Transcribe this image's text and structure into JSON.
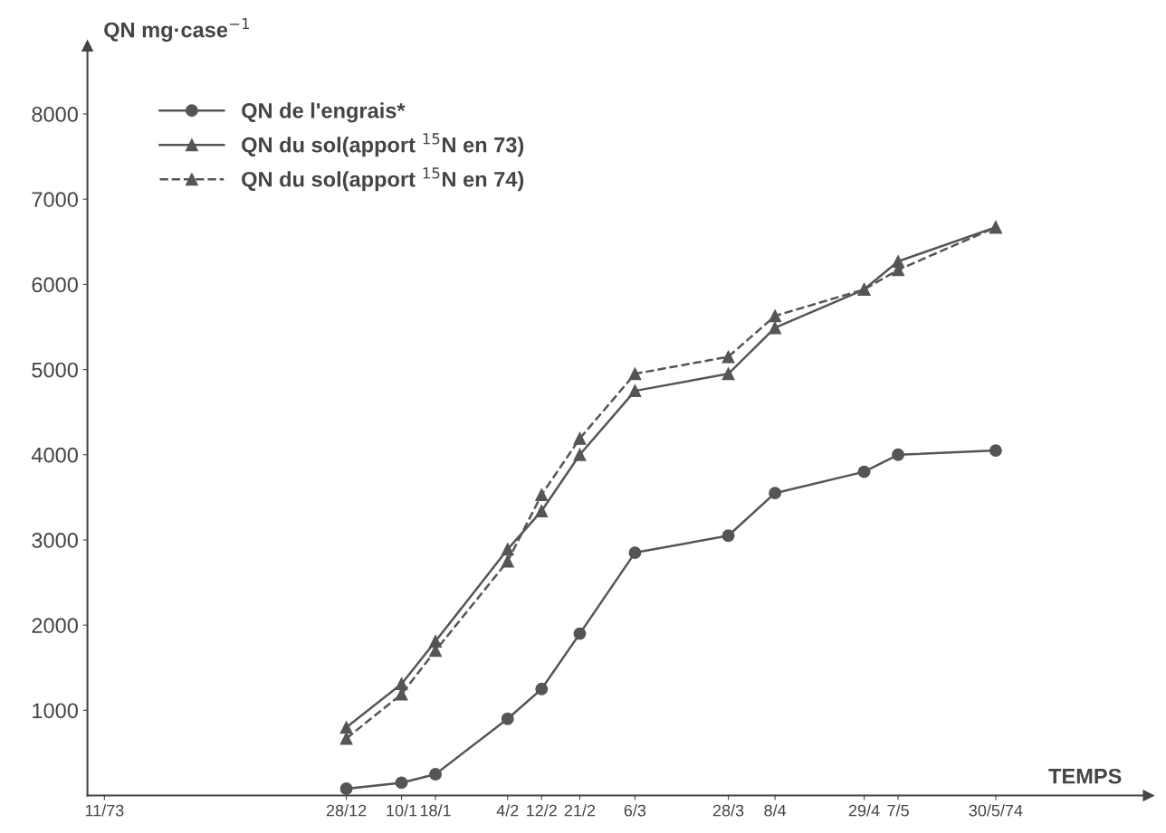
{
  "chart_data": {
    "type": "line",
    "ylabel": "QN mg·case$^{−1}$",
    "xlabel": "TEMPS",
    "x": [
      "1973-12-28",
      "1974-01-10",
      "1974-01-18",
      "1974-02-04",
      "1974-02-12",
      "1974-02-21",
      "1974-03-06",
      "1974-03-28",
      "1974-04-08",
      "1974-04-29",
      "1974-05-07",
      "1974-05-30"
    ],
    "series": [
      {
        "name": "QN de l'engrais*",
        "color": "#555555",
        "marker": "circle",
        "line_style": "solid",
        "values": [
          80,
          150,
          250,
          900,
          1250,
          1900,
          2850,
          3050,
          3550,
          3800,
          4000,
          4050
        ]
      },
      {
        "name": "QN du sol(apport $^{15}$N en 73)",
        "color": "#555555",
        "marker": "triangle",
        "line_style": "solid",
        "values": [
          800,
          1310,
          1810,
          2890,
          3340,
          4000,
          4750,
          4950,
          5490,
          5940,
          6270,
          6670
        ]
      },
      {
        "name": "QN du sol(apport $^{15}$N en 74)",
        "color": "#555555",
        "marker": "triangle",
        "line_style": "dashed",
        "values": [
          670,
          1190,
          1700,
          2750,
          3530,
          4190,
          4950,
          5150,
          5630,
          5940,
          6170,
          6670
        ]
      }
    ],
    "xlim": [
      "1973-10-28",
      "1974-07-05"
    ],
    "xticks": [
      {
        "value": "1973-11-01",
        "label": "11/73"
      },
      {
        "value": "1973-12-28",
        "label": "28/12"
      },
      {
        "value": "1974-01-10",
        "label": "10/1"
      },
      {
        "value": "1974-01-18",
        "label": "18/1"
      },
      {
        "value": "1974-02-04",
        "label": "4/2"
      },
      {
        "value": "1974-02-12",
        "label": "12/2"
      },
      {
        "value": "1974-02-21",
        "label": "21/2"
      },
      {
        "value": "1974-03-06",
        "label": "6/3"
      },
      {
        "value": "1974-03-28",
        "label": "28/3"
      },
      {
        "value": "1974-04-08",
        "label": "8/4"
      },
      {
        "value": "1974-04-29",
        "label": "29/4"
      },
      {
        "value": "1974-05-07",
        "label": "7/5"
      },
      {
        "value": "1974-05-30",
        "label": "30/5/74"
      }
    ],
    "ylim": [
      0,
      8800
    ],
    "yticks": [
      1000,
      2000,
      3000,
      4000,
      5000,
      6000,
      7000,
      8000
    ],
    "grid": false,
    "legend": "top left"
  }
}
